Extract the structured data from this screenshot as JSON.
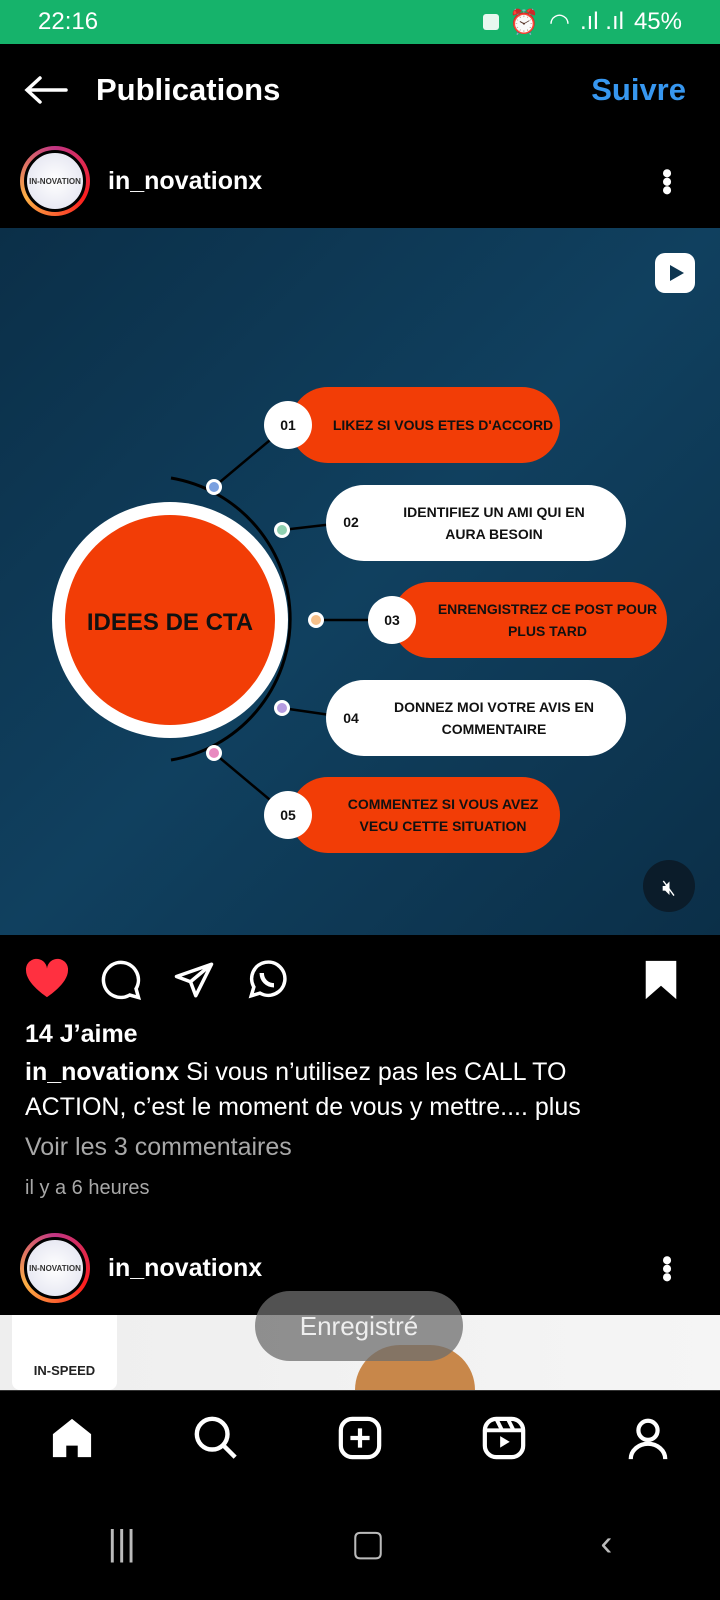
{
  "status": {
    "time": "22:16",
    "battery": "45%"
  },
  "header": {
    "title": "Publications",
    "follow": "Suivre"
  },
  "post": {
    "username": "in_novationx",
    "avatar_text": "IN-NOVATION",
    "infographic": {
      "center": "IDEES DE CTA",
      "items": [
        {
          "num": "01",
          "text": [
            "LIKEZ SI VOUS ETES D'ACCORD"
          ],
          "style": "orange"
        },
        {
          "num": "02",
          "text": [
            "IDENTIFIEZ UN AMI QUI EN",
            "AURA BESOIN"
          ],
          "style": "white"
        },
        {
          "num": "03",
          "text": [
            "ENRENGISTREZ  CE POST POUR",
            "PLUS TARD"
          ],
          "style": "orange"
        },
        {
          "num": "04",
          "text": [
            "DONNEZ MOI VOTRE AVIS EN",
            "COMMENTAIRE"
          ],
          "style": "white"
        },
        {
          "num": "05",
          "text": [
            "COMMENTEZ SI VOUS AVEZ",
            "VECU CETTE SITUATION"
          ],
          "style": "orange"
        }
      ]
    },
    "likes": "14 J’aime",
    "caption": "Si vous n’utilisez pas les CALL TO ACTION, c’est le moment de vous y mettre....",
    "more": "plus",
    "comments": "Voir les 3 commentaires",
    "time": "il y a 6 heures",
    "liked": true,
    "saved": true
  },
  "post2": {
    "username": "in_novationx",
    "avatar_text": "IN-NOVATION",
    "image_logo": "IN-SPEED"
  },
  "toast": "Enregistré",
  "colors": {
    "status": "#16b36b",
    "accent": "#3797f0",
    "like": "#ff3040",
    "orange": "#f23d06"
  }
}
